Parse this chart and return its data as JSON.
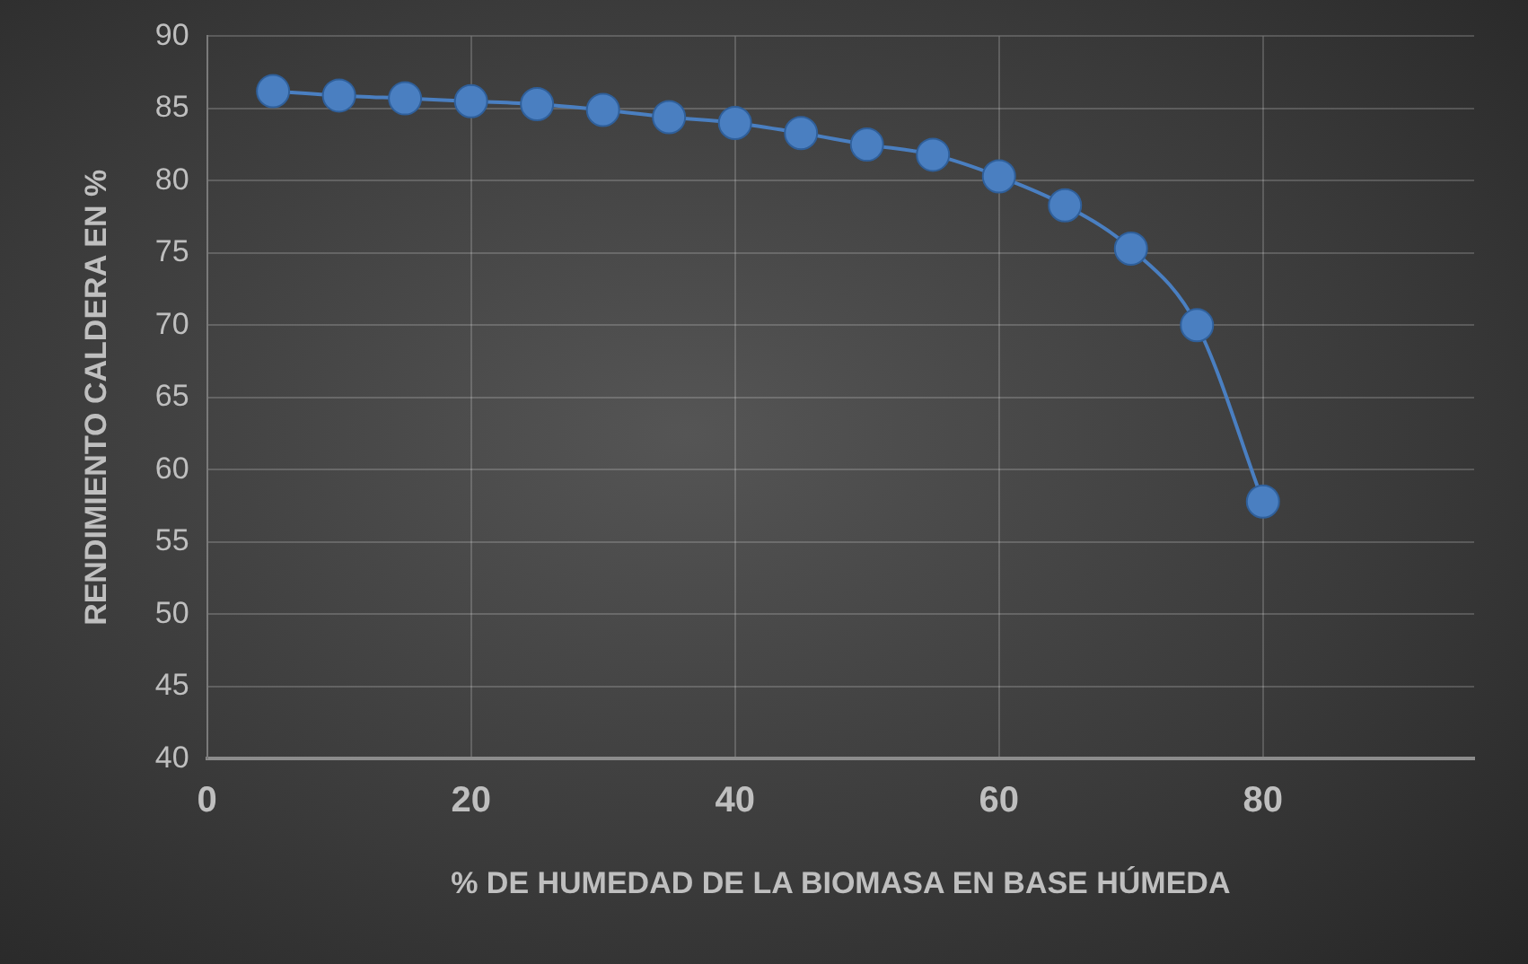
{
  "chart_data": {
    "type": "line",
    "xlabel": "% DE HUMEDAD DE LA BIOMASA EN BASE HÚMEDA",
    "ylabel": "RENDIMIENTO CALDERA EN %",
    "x": [
      5,
      10,
      15,
      20,
      25,
      30,
      35,
      40,
      45,
      50,
      55,
      60,
      65,
      70,
      75,
      80
    ],
    "series": [
      {
        "color": "#4a7fc1",
        "values": [
          86.2,
          85.9,
          85.7,
          85.5,
          85.3,
          84.9,
          84.4,
          84.0,
          83.3,
          82.5,
          81.8,
          80.3,
          78.3,
          75.3,
          70.0,
          57.8
        ]
      }
    ],
    "xlim": [
      0,
      96
    ],
    "xticks": [
      0,
      20,
      40,
      60,
      80
    ],
    "ylim": [
      40,
      90
    ],
    "yticks": [
      40,
      45,
      50,
      55,
      60,
      65,
      70,
      75,
      80,
      85,
      90
    ],
    "grid": true,
    "legend": false,
    "marker": "circle",
    "line_style": "solid"
  }
}
